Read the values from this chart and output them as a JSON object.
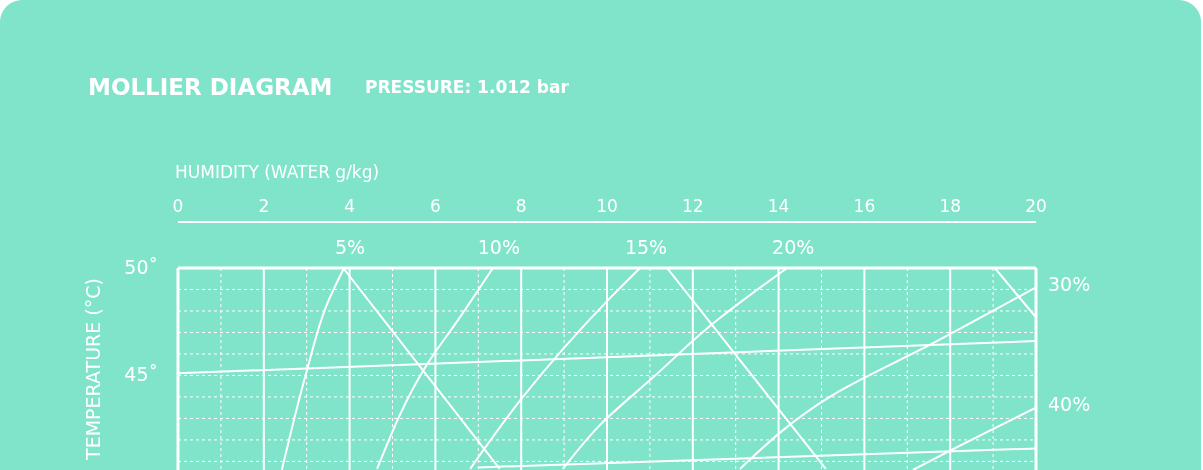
{
  "chart_data": {
    "type": "line",
    "title": "MOLLIER DIAGRAM",
    "subtitle": "PRESSURE: 1.012 bar",
    "xlabel": "HUMIDITY (WATER g/kg)",
    "ylabel": "TEMPERATURE (°C)",
    "xlim": [
      0,
      20
    ],
    "xticks": [
      0,
      2,
      4,
      6,
      8,
      10,
      12,
      14,
      16,
      18,
      20
    ],
    "ylim": [
      40.6,
      50
    ],
    "yticks": [
      {
        "value": 45,
        "label": "45˚"
      },
      {
        "value": 50,
        "label": "50˚"
      }
    ],
    "grid": true,
    "marker": "none",
    "line_style": "solid",
    "series": [
      {
        "name": "5%",
        "color": "#ffffff",
        "x": [
          2.42,
          3.0,
          3.47,
          3.87
        ],
        "values": [
          40.6,
          45.2,
          48.3,
          50
        ]
      },
      {
        "name": "10%",
        "color": "#ffffff",
        "x": [
          4.64,
          5.8,
          6.57,
          7.34
        ],
        "values": [
          40.65,
          45.5,
          47.7,
          50
        ]
      },
      {
        "name": "15%",
        "color": "#ffffff",
        "x": [
          6.81,
          8.04,
          10.07,
          10.77
        ],
        "values": [
          40.65,
          44.0,
          48.6,
          50
        ]
      },
      {
        "name": "20%",
        "color": "#ffffff",
        "x": [
          8.97,
          9.84,
          11.07,
          12.4,
          14.2
        ],
        "values": [
          40.65,
          42.7,
          44.9,
          47.3,
          50
        ]
      },
      {
        "name": "30%",
        "color": "#ffffff",
        "x": [
          13.1,
          15.27,
          17.6,
          20
        ],
        "values": [
          40.65,
          44.1,
          46.5,
          49.1
        ]
      },
      {
        "name": "40%",
        "color": "#ffffff",
        "x": [
          17.13,
          18.0,
          20
        ],
        "values": [
          40.6,
          41.5,
          43.5
        ]
      },
      {
        "color": "#ffffff",
        "x": [
          0,
          20
        ],
        "values": [
          45.1,
          46.6
        ]
      },
      {
        "color": "#ffffff",
        "x": [
          7,
          20
        ],
        "values": [
          40.72,
          41.6
        ]
      },
      {
        "color": "#ffffff",
        "x": [
          7.5,
          3.85
        ],
        "values": [
          40.65,
          50
        ]
      },
      {
        "color": "#ffffff",
        "x": [
          15.1,
          11.4
        ],
        "values": [
          40.65,
          50
        ]
      },
      {
        "color": "#ffffff",
        "x": [
          20,
          19.04
        ],
        "values": [
          47.7,
          50
        ]
      }
    ]
  }
}
